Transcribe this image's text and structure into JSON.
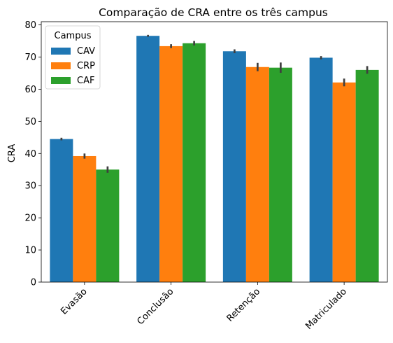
{
  "chart_data": {
    "type": "bar",
    "title": "Comparação de CRA entre os três campus",
    "xlabel": "",
    "ylabel": "CRA",
    "ylim": [
      0,
      81
    ],
    "yticks": [
      0,
      10,
      20,
      30,
      40,
      50,
      60,
      70,
      80
    ],
    "categories": [
      "Evasão",
      "Conclusão",
      "Retenção",
      "Matriculado"
    ],
    "legend": {
      "title": "Campus",
      "placement": "top-left"
    },
    "grid": false,
    "series": [
      {
        "name": "CAV",
        "color": "#1f77b4",
        "values": [
          44.5,
          76.6,
          71.8,
          69.8
        ],
        "err": [
          0.4,
          0.3,
          0.6,
          0.5
        ]
      },
      {
        "name": "CRP",
        "color": "#ff7f0e",
        "values": [
          39.2,
          73.4,
          66.9,
          62.1
        ],
        "err": [
          0.8,
          0.6,
          1.3,
          1.2
        ]
      },
      {
        "name": "CAF",
        "color": "#2ca02c",
        "values": [
          35.0,
          74.3,
          66.7,
          66.0
        ],
        "err": [
          1.0,
          0.7,
          1.6,
          1.2
        ]
      }
    ]
  }
}
